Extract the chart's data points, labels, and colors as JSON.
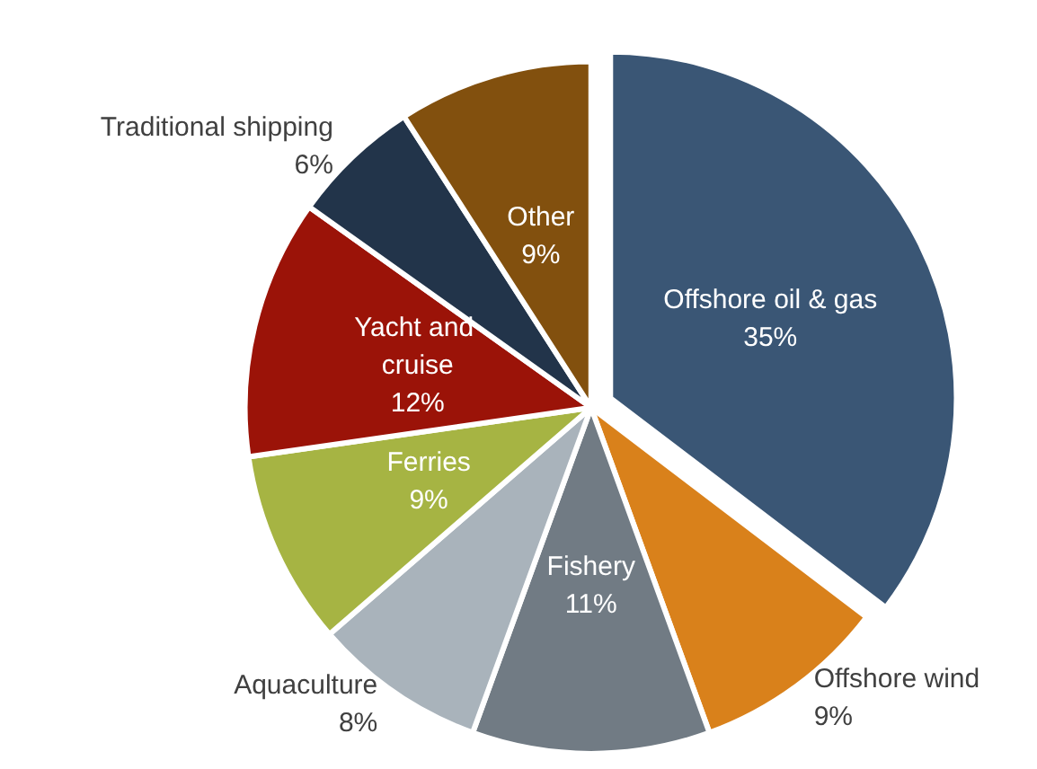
{
  "chart_data": {
    "type": "pie",
    "categories": [
      "Offshore oil & gas",
      "Offshore wind",
      "Fishery",
      "Aquaculture",
      "Ferries",
      "Yacht and cruise",
      "Traditional shipping",
      "Other"
    ],
    "values": [
      35,
      9,
      11,
      8,
      9,
      12,
      6,
      9
    ],
    "value_labels": [
      "35%",
      "9%",
      "11%",
      "8%",
      "9%",
      "12%",
      "6%",
      "9%"
    ],
    "colors": [
      "#3a5675",
      "#d9811b",
      "#717b84",
      "#a9b3bb",
      "#a6b443",
      "#9b1308",
      "#22344a",
      "#82500e"
    ]
  }
}
